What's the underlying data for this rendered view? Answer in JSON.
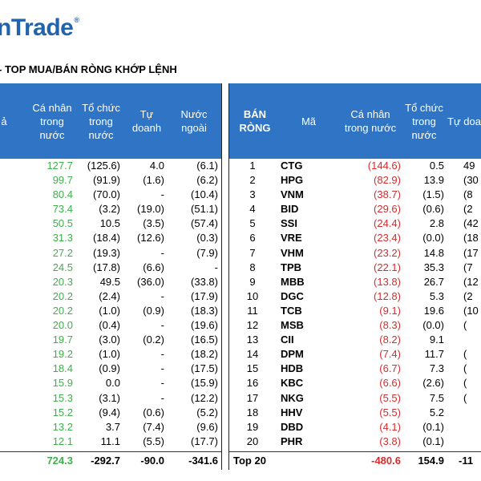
{
  "logo": {
    "text": "nTrade",
    "mark": "®"
  },
  "title": "- TOP MUA/BÁN RÒNG KHỚP LỆNH",
  "left": {
    "headers": {
      "partial": "ả",
      "ca_nhan": "Cá nhân\ntrong\nnước",
      "to_chuc": "Tổ chức\ntrong\nnước",
      "tu_doanh": "Tự\ndoanh",
      "nuoc_ngoai": "Nước\nngoài"
    },
    "rows": [
      {
        "ca_nhan": "127.7",
        "to_chuc": "(125.6)",
        "tu_doanh": "4.0",
        "nuoc_ngoai": "(6.1)"
      },
      {
        "ca_nhan": "99.7",
        "to_chuc": "(91.9)",
        "tu_doanh": "(1.6)",
        "nuoc_ngoai": "(6.2)"
      },
      {
        "ca_nhan": "80.4",
        "to_chuc": "(70.0)",
        "tu_doanh": "-",
        "nuoc_ngoai": "(10.4)"
      },
      {
        "ca_nhan": "73.4",
        "to_chuc": "(3.2)",
        "tu_doanh": "(19.0)",
        "nuoc_ngoai": "(51.1)"
      },
      {
        "ca_nhan": "50.5",
        "to_chuc": "10.5",
        "tu_doanh": "(3.5)",
        "nuoc_ngoai": "(57.4)"
      },
      {
        "ca_nhan": "31.3",
        "to_chuc": "(18.4)",
        "tu_doanh": "(12.6)",
        "nuoc_ngoai": "(0.3)"
      },
      {
        "ca_nhan": "27.2",
        "to_chuc": "(19.3)",
        "tu_doanh": "-",
        "nuoc_ngoai": "(7.9)"
      },
      {
        "ca_nhan": "24.5",
        "to_chuc": "(17.8)",
        "tu_doanh": "(6.6)",
        "nuoc_ngoai": "-"
      },
      {
        "ca_nhan": "20.3",
        "to_chuc": "49.5",
        "tu_doanh": "(36.0)",
        "nuoc_ngoai": "(33.8)"
      },
      {
        "ca_nhan": "20.2",
        "to_chuc": "(2.4)",
        "tu_doanh": "-",
        "nuoc_ngoai": "(17.9)"
      },
      {
        "ca_nhan": "20.2",
        "to_chuc": "(1.0)",
        "tu_doanh": "(0.9)",
        "nuoc_ngoai": "(18.3)"
      },
      {
        "ca_nhan": "20.0",
        "to_chuc": "(0.4)",
        "tu_doanh": "-",
        "nuoc_ngoai": "(19.6)"
      },
      {
        "ca_nhan": "19.7",
        "to_chuc": "(3.0)",
        "tu_doanh": "(0.2)",
        "nuoc_ngoai": "(16.5)"
      },
      {
        "ca_nhan": "19.2",
        "to_chuc": "(1.0)",
        "tu_doanh": "-",
        "nuoc_ngoai": "(18.2)"
      },
      {
        "ca_nhan": "18.4",
        "to_chuc": "(0.9)",
        "tu_doanh": "-",
        "nuoc_ngoai": "(17.5)"
      },
      {
        "ca_nhan": "15.9",
        "to_chuc": "0.0",
        "tu_doanh": "-",
        "nuoc_ngoai": "(15.9)"
      },
      {
        "ca_nhan": "15.3",
        "to_chuc": "(3.1)",
        "tu_doanh": "-",
        "nuoc_ngoai": "(12.2)"
      },
      {
        "ca_nhan": "15.2",
        "to_chuc": "(9.4)",
        "tu_doanh": "(0.6)",
        "nuoc_ngoai": "(5.2)"
      },
      {
        "ca_nhan": "13.2",
        "to_chuc": "3.7",
        "tu_doanh": "(7.4)",
        "nuoc_ngoai": "(9.6)"
      },
      {
        "ca_nhan": "12.1",
        "to_chuc": "11.1",
        "tu_doanh": "(5.5)",
        "nuoc_ngoai": "(17.7)"
      }
    ],
    "total": {
      "ca_nhan": "724.3",
      "to_chuc": "-292.7",
      "tu_doanh": "-90.0",
      "nuoc_ngoai": "-341.6"
    }
  },
  "right": {
    "headers": {
      "ban_rong": "BÁN\nRÒNG",
      "ma": "Mã",
      "ca_nhan": "Cá nhân\ntrong nước",
      "to_chuc": "Tổ chức\ntrong\nnước",
      "tu_doanh": "Tự doa"
    },
    "rows": [
      {
        "rank": "1",
        "code": "CTG",
        "ca_nhan": "(144.6)",
        "to_chuc": "0.5",
        "tu_doanh": "49"
      },
      {
        "rank": "2",
        "code": "HPG",
        "ca_nhan": "(82.9)",
        "to_chuc": "13.9",
        "tu_doanh": "(30"
      },
      {
        "rank": "3",
        "code": "VNM",
        "ca_nhan": "(38.7)",
        "to_chuc": "(1.5)",
        "tu_doanh": "(8"
      },
      {
        "rank": "4",
        "code": "BID",
        "ca_nhan": "(29.6)",
        "to_chuc": "(0.6)",
        "tu_doanh": "(2"
      },
      {
        "rank": "5",
        "code": "SSI",
        "ca_nhan": "(24.4)",
        "to_chuc": "2.8",
        "tu_doanh": "(42"
      },
      {
        "rank": "6",
        "code": "VRE",
        "ca_nhan": "(23.4)",
        "to_chuc": "(0.0)",
        "tu_doanh": "(18"
      },
      {
        "rank": "7",
        "code": "VHM",
        "ca_nhan": "(23.2)",
        "to_chuc": "14.8",
        "tu_doanh": "(17"
      },
      {
        "rank": "8",
        "code": "TPB",
        "ca_nhan": "(22.1)",
        "to_chuc": "35.3",
        "tu_doanh": "(7"
      },
      {
        "rank": "9",
        "code": "MBB",
        "ca_nhan": "(13.8)",
        "to_chuc": "26.7",
        "tu_doanh": "(12"
      },
      {
        "rank": "10",
        "code": "DGC",
        "ca_nhan": "(12.8)",
        "to_chuc": "5.3",
        "tu_doanh": "(2"
      },
      {
        "rank": "11",
        "code": "TCB",
        "ca_nhan": "(9.1)",
        "to_chuc": "19.6",
        "tu_doanh": "(10"
      },
      {
        "rank": "12",
        "code": "MSB",
        "ca_nhan": "(8.3)",
        "to_chuc": "(0.0)",
        "tu_doanh": "("
      },
      {
        "rank": "13",
        "code": "CII",
        "ca_nhan": "(8.2)",
        "to_chuc": "9.1",
        "tu_doanh": ""
      },
      {
        "rank": "14",
        "code": "DPM",
        "ca_nhan": "(7.4)",
        "to_chuc": "11.7",
        "tu_doanh": "("
      },
      {
        "rank": "15",
        "code": "HDB",
        "ca_nhan": "(6.7)",
        "to_chuc": "7.3",
        "tu_doanh": "("
      },
      {
        "rank": "16",
        "code": "KBC",
        "ca_nhan": "(6.6)",
        "to_chuc": "(2.6)",
        "tu_doanh": "("
      },
      {
        "rank": "17",
        "code": "NKG",
        "ca_nhan": "(5.5)",
        "to_chuc": "7.5",
        "tu_doanh": "("
      },
      {
        "rank": "18",
        "code": "HHV",
        "ca_nhan": "(5.5)",
        "to_chuc": "5.2",
        "tu_doanh": ""
      },
      {
        "rank": "19",
        "code": "DBD",
        "ca_nhan": "(4.1)",
        "to_chuc": "(0.1)",
        "tu_doanh": ""
      },
      {
        "rank": "20",
        "code": "PHR",
        "ca_nhan": "(3.8)",
        "to_chuc": "(0.1)",
        "tu_doanh": ""
      }
    ],
    "total": {
      "label": "Top 20",
      "ca_nhan": "-480.6",
      "to_chuc": "154.9",
      "tu_doanh": "-11"
    }
  },
  "colors": {
    "header_bg": "#2f74c5",
    "positive": "#3eb04b",
    "negative": "#d42d2d",
    "logo": "#2163ad"
  }
}
